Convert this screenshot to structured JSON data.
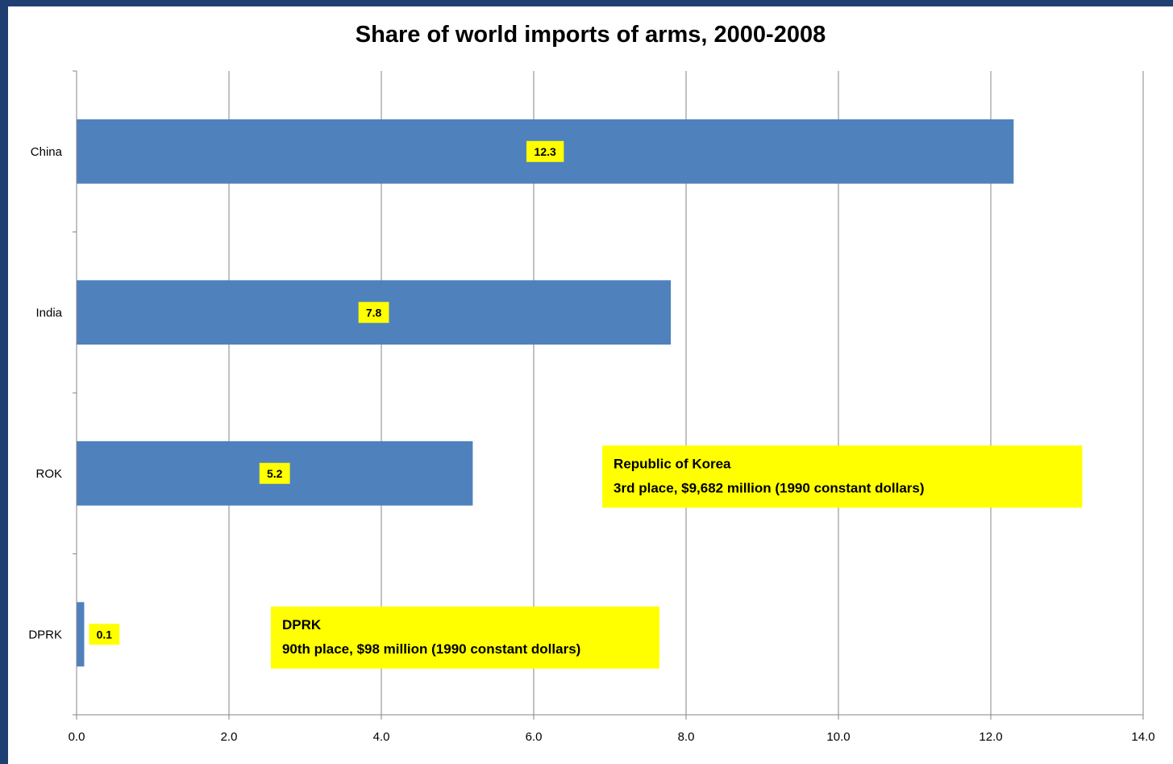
{
  "chart_data": {
    "type": "bar",
    "orientation": "horizontal",
    "title": "Share of world imports of arms, 2000-2008",
    "xlabel": "",
    "ylabel": "",
    "categories": [
      "China",
      "India",
      "ROK",
      "DPRK"
    ],
    "values": [
      12.3,
      7.8,
      5.2,
      0.1
    ],
    "data_labels": [
      "12.3",
      "7.8",
      "5.2",
      "0.1"
    ],
    "xlim": [
      0,
      14
    ],
    "x_ticks": [
      "0.0",
      "2.0",
      "4.0",
      "6.0",
      "8.0",
      "10.0",
      "12.0",
      "14.0"
    ],
    "grid": true,
    "legend": "none",
    "colors": {
      "bar": "#4f81bd",
      "label_highlight": "#ffff00",
      "gridline": "#868686",
      "border": "#1f3f73"
    },
    "annotations": [
      {
        "lines": [
          "Republic of Korea",
          "3rd place,  $9,682  million (1990 constant dollars)"
        ],
        "x_range": [
          6.9,
          13.2
        ],
        "category": "ROK"
      },
      {
        "lines": [
          "DPRK",
          "90th place, $98  million (1990 constant dollars)"
        ],
        "x_range": [
          2.55,
          7.65
        ],
        "category": "DPRK"
      }
    ]
  }
}
